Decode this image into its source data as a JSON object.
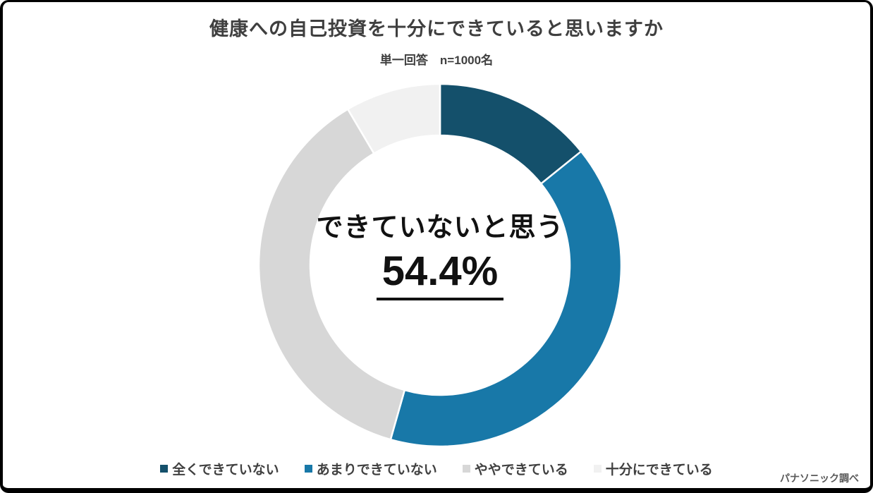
{
  "header": {
    "title": "健康への自己投資を十分にできていると思いますか",
    "subtitle": "単一回答　n=1000名"
  },
  "chart_data": {
    "type": "pie",
    "subtype": "donut",
    "title": "健康への自己投資を十分にできていると思いますか",
    "note": "単一回答 n=1000名",
    "categories": [
      "全くできていない",
      "あまりできていない",
      "ややできている",
      "十分にできている"
    ],
    "values": [
      14.2,
      40.2,
      37.1,
      8.5
    ],
    "colors": [
      "#14506B",
      "#1878A8",
      "#D7D7D7",
      "#F1F1F1"
    ],
    "start_angle_deg": 0,
    "direction": "clockwise",
    "inner_radius_ratio": 0.715,
    "legend_position": "bottom",
    "segment_gap_color": "#FFFFFF",
    "center_annotation": {
      "label": "できていないと思う",
      "value": "54.4%",
      "value_underlined": true,
      "represents": "全くできていない + あまりできていない"
    }
  },
  "footer": {
    "source": "パナソニック調べ"
  }
}
